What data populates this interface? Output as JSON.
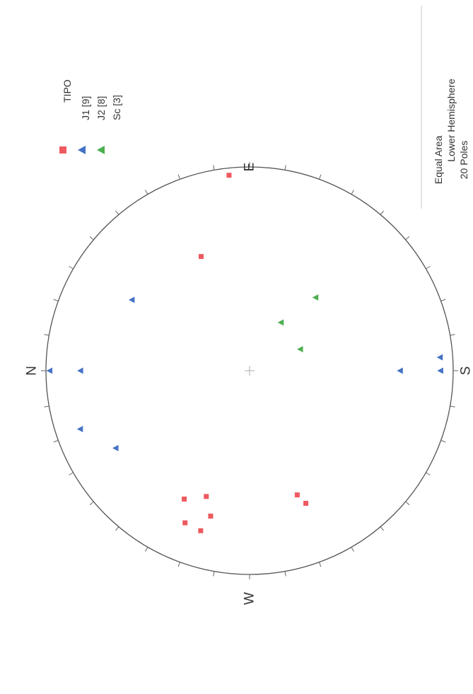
{
  "chart_data": {
    "type": "scatter",
    "projection": "Equal Area",
    "hemisphere": "Lower Hemisphere",
    "directions": {
      "north": "N",
      "east": "E",
      "south": "S",
      "west": "W"
    },
    "legend": {
      "title": "TIPO",
      "entries": [
        {
          "label": "J1 [9]",
          "color": "#ee5a5f",
          "marker": "square"
        },
        {
          "label": "J2 [8]",
          "color": "#4472c4",
          "marker": "triangle"
        },
        {
          "label": "Sc [3]",
          "color": "#4caf50",
          "marker": "triangle"
        }
      ]
    },
    "info": {
      "line1": "Equal Area",
      "line2": "Lower Hemisphere",
      "line3": "20 Poles"
    },
    "series": [
      {
        "name": "J1 [9]",
        "color": "#ee5a5f",
        "marker": "square",
        "points": [
          {
            "trend": 84,
            "plunge": 4
          },
          {
            "trend": 67,
            "plunge": 39
          },
          {
            "trend": 247,
            "plunge": 30
          },
          {
            "trend": 249,
            "plunge": 35
          },
          {
            "trend": 289,
            "plunge": 35
          },
          {
            "trend": 297,
            "plunge": 30
          },
          {
            "trend": 293,
            "plunge": 20
          },
          {
            "trend": 287,
            "plunge": 19
          },
          {
            "trend": 285,
            "plunge": 27
          }
        ]
      },
      {
        "name": "J2 [8]",
        "color": "#4472c4",
        "marker": "triangle",
        "points": [
          {
            "trend": 0,
            "plunge": 2
          },
          {
            "trend": 0,
            "plunge": 18
          },
          {
            "trend": 31,
            "plunge": 33
          },
          {
            "trend": 180,
            "plunge": 27
          },
          {
            "trend": 180,
            "plunge": 7
          },
          {
            "trend": 176,
            "plunge": 7
          },
          {
            "trend": 341,
            "plunge": 13
          },
          {
            "trend": 330,
            "plunge": 25
          }
        ]
      },
      {
        "name": "Sc [3]",
        "color": "#4caf50",
        "marker": "triangle",
        "points": [
          {
            "trend": 123,
            "plunge": 67
          },
          {
            "trend": 157,
            "plunge": 68
          },
          {
            "trend": 132,
            "plunge": 50
          }
        ]
      }
    ]
  }
}
